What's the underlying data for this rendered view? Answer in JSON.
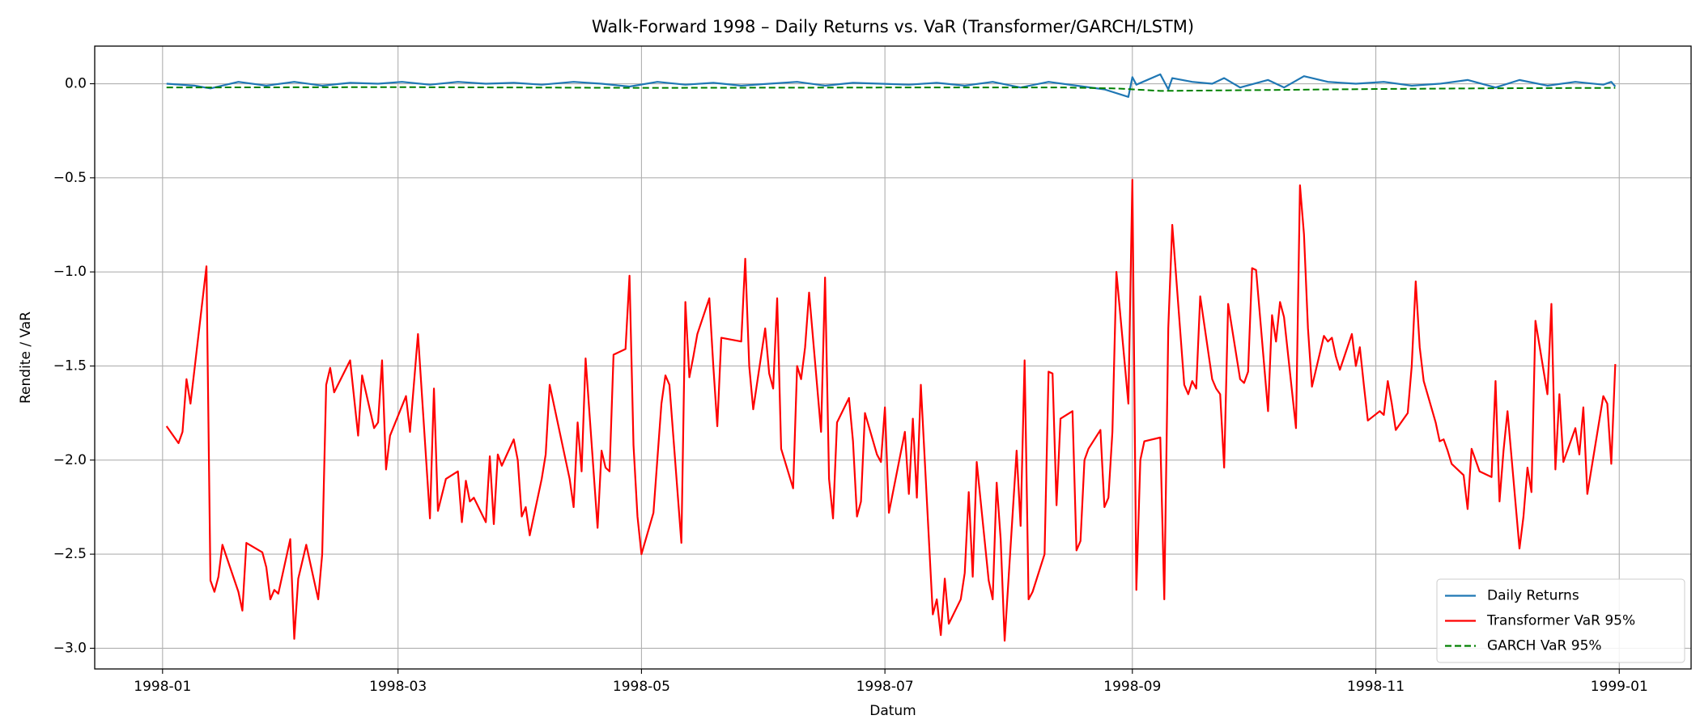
{
  "chart_data": {
    "type": "line",
    "title": "Walk-Forward 1998 – Daily Returns vs. VaR (Transformer/GARCH/LSTM)",
    "x_label": "Datum",
    "y_label": "Rendite / VaR",
    "xlim": [
      "1997-12-15",
      "1999-01-19"
    ],
    "ylim": [
      -3.11,
      0.2
    ],
    "xticks": [
      {
        "value": "1998-01-01",
        "label": "1998-01"
      },
      {
        "value": "1998-03-01",
        "label": "1998-03"
      },
      {
        "value": "1998-05-01",
        "label": "1998-05"
      },
      {
        "value": "1998-07-01",
        "label": "1998-07"
      },
      {
        "value": "1998-09-01",
        "label": "1998-09"
      },
      {
        "value": "1998-11-01",
        "label": "1998-11"
      },
      {
        "value": "1999-01-01",
        "label": "1999-01"
      }
    ],
    "yticks": [
      {
        "value": -3.0,
        "label": "−3.0"
      },
      {
        "value": -2.5,
        "label": "−2.5"
      },
      {
        "value": -2.0,
        "label": "−2.0"
      },
      {
        "value": -1.5,
        "label": "−1.5"
      },
      {
        "value": -1.0,
        "label": "−1.0"
      },
      {
        "value": -0.5,
        "label": "−0.5"
      },
      {
        "value": 0,
        "label": "0.0"
      }
    ],
    "grid": true,
    "legend": "lower right",
    "series": [
      {
        "name": "Daily Returns",
        "color": "#1f77b4",
        "linestyle": "solid",
        "x": [
          "1998-01-02",
          "1998-01-09",
          "1998-01-13",
          "1998-01-20",
          "1998-01-27",
          "1998-02-03",
          "1998-02-10",
          "1998-02-17",
          "1998-02-24",
          "1998-03-02",
          "1998-03-09",
          "1998-03-16",
          "1998-03-23",
          "1998-03-30",
          "1998-04-06",
          "1998-04-14",
          "1998-04-21",
          "1998-04-28",
          "1998-05-05",
          "1998-05-12",
          "1998-05-19",
          "1998-05-26",
          "1998-06-02",
          "1998-06-09",
          "1998-06-16",
          "1998-06-23",
          "1998-06-30",
          "1998-07-07",
          "1998-07-14",
          "1998-07-21",
          "1998-07-28",
          "1998-08-04",
          "1998-08-11",
          "1998-08-18",
          "1998-08-25",
          "1998-08-31",
          "1998-09-01",
          "1998-09-02",
          "1998-09-08",
          "1998-09-10",
          "1998-09-11",
          "1998-09-16",
          "1998-09-21",
          "1998-09-24",
          "1998-09-28",
          "1998-10-05",
          "1998-10-09",
          "1998-10-14",
          "1998-10-20",
          "1998-10-27",
          "1998-11-03",
          "1998-11-10",
          "1998-11-17",
          "1998-11-24",
          "1998-12-01",
          "1998-12-07",
          "1998-12-14",
          "1998-12-21",
          "1998-12-28",
          "1998-12-30",
          "1998-12-31"
        ],
        "values": [
          0.0,
          -0.01,
          -0.025,
          0.01,
          -0.01,
          0.01,
          -0.01,
          0.005,
          0.0,
          0.01,
          -0.005,
          0.01,
          0.0,
          0.005,
          -0.005,
          0.01,
          0.0,
          -0.015,
          0.01,
          -0.005,
          0.005,
          -0.01,
          0.0,
          0.01,
          -0.01,
          0.005,
          0.0,
          -0.005,
          0.005,
          -0.01,
          0.01,
          -0.02,
          0.01,
          -0.01,
          -0.03,
          -0.07,
          0.035,
          -0.005,
          0.05,
          -0.03,
          0.03,
          0.01,
          0.0,
          0.03,
          -0.02,
          0.02,
          -0.02,
          0.04,
          0.01,
          0.0,
          0.01,
          -0.01,
          0.0,
          0.02,
          -0.02,
          0.02,
          -0.01,
          0.01,
          -0.005,
          0.01,
          -0.015
        ]
      },
      {
        "name": "Transformer VaR 95%",
        "color": "#ff0000",
        "linestyle": "solid",
        "x": [
          "1998-01-02",
          "1998-01-05",
          "1998-01-06",
          "1998-01-07",
          "1998-01-08",
          "1998-01-12",
          "1998-01-13",
          "1998-01-14",
          "1998-01-15",
          "1998-01-16",
          "1998-01-20",
          "1998-01-21",
          "1998-01-22",
          "1998-01-26",
          "1998-01-27",
          "1998-01-28",
          "1998-01-29",
          "1998-01-30",
          "1998-02-02",
          "1998-02-03",
          "1998-02-04",
          "1998-02-06",
          "1998-02-09",
          "1998-02-10",
          "1998-02-11",
          "1998-02-12",
          "1998-02-13",
          "1998-02-17",
          "1998-02-19",
          "1998-02-20",
          "1998-02-23",
          "1998-02-24",
          "1998-02-25",
          "1998-02-26",
          "1998-02-27",
          "1998-03-03",
          "1998-03-04",
          "1998-03-06",
          "1998-03-09",
          "1998-03-10",
          "1998-03-11",
          "1998-03-13",
          "1998-03-16",
          "1998-03-17",
          "1998-03-18",
          "1998-03-19",
          "1998-03-20",
          "1998-03-23",
          "1998-03-24",
          "1998-03-25",
          "1998-03-26",
          "1998-03-27",
          "1998-03-30",
          "1998-03-31",
          "1998-04-01",
          "1998-04-02",
          "1998-04-03",
          "1998-04-06",
          "1998-04-07",
          "1998-04-08",
          "1998-04-13",
          "1998-04-14",
          "1998-04-15",
          "1998-04-16",
          "1998-04-17",
          "1998-04-20",
          "1998-04-21",
          "1998-04-22",
          "1998-04-23",
          "1998-04-24",
          "1998-04-27",
          "1998-04-28",
          "1998-04-29",
          "1998-04-30",
          "1998-05-01",
          "1998-05-04",
          "1998-05-06",
          "1998-05-07",
          "1998-05-08",
          "1998-05-11",
          "1998-05-12",
          "1998-05-13",
          "1998-05-14",
          "1998-05-15",
          "1998-05-18",
          "1998-05-19",
          "1998-05-20",
          "1998-05-21",
          "1998-05-26",
          "1998-05-27",
          "1998-05-28",
          "1998-05-29",
          "1998-06-01",
          "1998-06-02",
          "1998-06-03",
          "1998-06-04",
          "1998-06-05",
          "1998-06-08",
          "1998-06-09",
          "1998-06-10",
          "1998-06-11",
          "1998-06-12",
          "1998-06-15",
          "1998-06-16",
          "1998-06-17",
          "1998-06-18",
          "1998-06-19",
          "1998-06-22",
          "1998-06-23",
          "1998-06-24",
          "1998-06-25",
          "1998-06-26",
          "1998-06-29",
          "1998-06-30",
          "1998-07-01",
          "1998-07-02",
          "1998-07-06",
          "1998-07-07",
          "1998-07-08",
          "1998-07-09",
          "1998-07-10",
          "1998-07-13",
          "1998-07-14",
          "1998-07-15",
          "1998-07-16",
          "1998-07-17",
          "1998-07-20",
          "1998-07-21",
          "1998-07-22",
          "1998-07-23",
          "1998-07-24",
          "1998-07-27",
          "1998-07-28",
          "1998-07-29",
          "1998-07-30",
          "1998-07-31",
          "1998-08-03",
          "1998-08-04",
          "1998-08-05",
          "1998-08-06",
          "1998-08-07",
          "1998-08-10",
          "1998-08-11",
          "1998-08-12",
          "1998-08-13",
          "1998-08-14",
          "1998-08-17",
          "1998-08-18",
          "1998-08-19",
          "1998-08-20",
          "1998-08-21",
          "1998-08-24",
          "1998-08-25",
          "1998-08-26",
          "1998-08-27",
          "1998-08-28",
          "1998-08-31",
          "1998-09-01",
          "1998-09-02",
          "1998-09-03",
          "1998-09-04",
          "1998-09-08",
          "1998-09-09",
          "1998-09-10",
          "1998-09-11",
          "1998-09-14",
          "1998-09-15",
          "1998-09-16",
          "1998-09-17",
          "1998-09-18",
          "1998-09-21",
          "1998-09-22",
          "1998-09-23",
          "1998-09-24",
          "1998-09-25",
          "1998-09-28",
          "1998-09-29",
          "1998-09-30",
          "1998-10-01",
          "1998-10-02",
          "1998-10-05",
          "1998-10-06",
          "1998-10-07",
          "1998-10-08",
          "1998-10-09",
          "1998-10-12",
          "1998-10-13",
          "1998-10-14",
          "1998-10-15",
          "1998-10-16",
          "1998-10-19",
          "1998-10-20",
          "1998-10-21",
          "1998-10-22",
          "1998-10-23",
          "1998-10-26",
          "1998-10-27",
          "1998-10-28",
          "1998-10-29",
          "1998-10-30",
          "1998-11-02",
          "1998-11-03",
          "1998-11-04",
          "1998-11-05",
          "1998-11-06",
          "1998-11-09",
          "1998-11-10",
          "1998-11-11",
          "1998-11-12",
          "1998-11-13",
          "1998-11-16",
          "1998-11-17",
          "1998-11-18",
          "1998-11-19",
          "1998-11-20",
          "1998-11-23",
          "1998-11-24",
          "1998-11-25",
          "1998-11-27",
          "1998-11-30",
          "1998-12-01",
          "1998-12-02",
          "1998-12-03",
          "1998-12-04",
          "1998-12-07",
          "1998-12-08",
          "1998-12-09",
          "1998-12-10",
          "1998-12-11",
          "1998-12-14",
          "1998-12-15",
          "1998-12-16",
          "1998-12-17",
          "1998-12-18",
          "1998-12-21",
          "1998-12-22",
          "1998-12-23",
          "1998-12-24",
          "1998-12-28",
          "1998-12-29",
          "1998-12-30",
          "1998-12-31"
        ],
        "values": [
          -1.82,
          -1.91,
          -1.85,
          -1.57,
          -1.7,
          -0.97,
          -2.64,
          -2.7,
          -2.62,
          -2.45,
          -2.7,
          -2.8,
          -2.44,
          -2.49,
          -2.57,
          -2.74,
          -2.69,
          -2.71,
          -2.42,
          -2.95,
          -2.63,
          -2.45,
          -2.74,
          -2.5,
          -1.6,
          -1.51,
          -1.64,
          -1.47,
          -1.87,
          -1.55,
          -1.83,
          -1.8,
          -1.47,
          -2.05,
          -1.87,
          -1.66,
          -1.85,
          -1.33,
          -2.31,
          -1.62,
          -2.27,
          -2.1,
          -2.06,
          -2.33,
          -2.11,
          -2.22,
          -2.2,
          -2.33,
          -1.98,
          -2.34,
          -1.97,
          -2.03,
          -1.89,
          -2.0,
          -2.3,
          -2.25,
          -2.4,
          -2.1,
          -1.97,
          -1.6,
          -2.1,
          -2.25,
          -1.8,
          -2.06,
          -1.46,
          -2.36,
          -1.95,
          -2.04,
          -2.06,
          -1.44,
          -1.41,
          -1.02,
          -1.92,
          -2.3,
          -2.5,
          -2.28,
          -1.7,
          -1.55,
          -1.6,
          -2.44,
          -1.16,
          -1.56,
          -1.45,
          -1.33,
          -1.14,
          -1.5,
          -1.82,
          -1.35,
          -1.37,
          -0.93,
          -1.5,
          -1.73,
          -1.3,
          -1.54,
          -1.62,
          -1.14,
          -1.94,
          -2.15,
          -1.5,
          -1.57,
          -1.4,
          -1.11,
          -1.85,
          -1.03,
          -2.1,
          -2.31,
          -1.8,
          -1.67,
          -1.9,
          -2.3,
          -2.22,
          -1.75,
          -1.97,
          -2.01,
          -1.72,
          -2.28,
          -1.85,
          -2.18,
          -1.78,
          -2.2,
          -1.6,
          -2.82,
          -2.74,
          -2.93,
          -2.63,
          -2.87,
          -2.74,
          -2.6,
          -2.17,
          -2.62,
          -2.01,
          -2.64,
          -2.74,
          -2.12,
          -2.42,
          -2.96,
          -1.95,
          -2.35,
          -1.47,
          -2.74,
          -2.7,
          -2.5,
          -1.53,
          -1.54,
          -2.24,
          -1.78,
          -1.74,
          -2.48,
          -2.43,
          -2.0,
          -1.94,
          -1.84,
          -2.25,
          -2.2,
          -1.85,
          -1.0,
          -1.7,
          -0.51,
          -2.69,
          -2.0,
          -1.9,
          -1.88,
          -2.74,
          -1.3,
          -0.75,
          -1.6,
          -1.65,
          -1.58,
          -1.62,
          -1.13,
          -1.57,
          -1.62,
          -1.65,
          -2.04,
          -1.17,
          -1.57,
          -1.59,
          -1.53,
          -0.98,
          -0.99,
          -1.74,
          -1.23,
          -1.37,
          -1.16,
          -1.24,
          -1.83,
          -0.54,
          -0.8,
          -1.3,
          -1.61,
          -1.34,
          -1.37,
          -1.35,
          -1.45,
          -1.52,
          -1.33,
          -1.5,
          -1.4,
          -1.6,
          -1.79,
          -1.74,
          -1.76,
          -1.58,
          -1.7,
          -1.84,
          -1.75,
          -1.5,
          -1.05,
          -1.4,
          -1.58,
          -1.8,
          -1.9,
          -1.89,
          -1.95,
          -2.02,
          -2.08,
          -2.26,
          -1.94,
          -2.06,
          -2.09,
          -1.58,
          -2.22,
          -1.95,
          -1.74,
          -2.47,
          -2.3,
          -2.04,
          -2.17,
          -1.26,
          -1.65,
          -1.17,
          -2.05,
          -1.65,
          -2.01,
          -1.83,
          -1.97,
          -1.72,
          -2.18,
          -1.66,
          -1.7,
          -2.02,
          -1.49
        ]
      },
      {
        "name": "GARCH VaR 95%",
        "color": "#008000",
        "linestyle": "dashed",
        "x": [
          "1998-01-02",
          "1998-03-01",
          "1998-05-01",
          "1998-07-01",
          "1998-08-15",
          "1998-08-28",
          "1998-09-08",
          "1998-10-01",
          "1998-11-01",
          "1998-12-01",
          "1998-12-31"
        ],
        "values": [
          -0.02,
          -0.018,
          -0.022,
          -0.02,
          -0.02,
          -0.025,
          -0.038,
          -0.034,
          -0.028,
          -0.024,
          -0.022
        ]
      }
    ]
  }
}
